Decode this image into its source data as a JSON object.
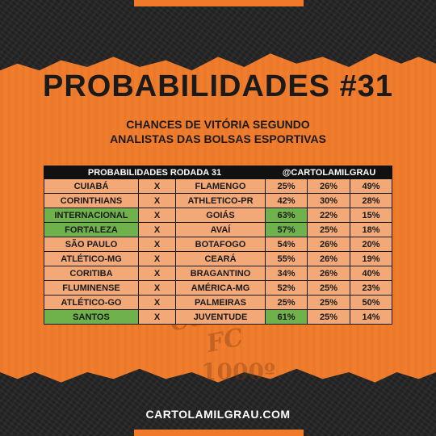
{
  "title": "PROBABILIDADES #31",
  "subtitle_line1": "CHANCES DE VITÓRIA SEGUNDO",
  "subtitle_line2": "ANALISTAS DAS BOLSAS ESPORTIVAS",
  "table": {
    "header_left": "PROBABILIDADES RODADA 31",
    "header_right": "@CARTOLAMILGRAU",
    "rows": [
      {
        "home": "CUIABÁ",
        "x": "X",
        "away": "FLAMENGO",
        "p1": "25%",
        "p2": "26%",
        "p3": "49%",
        "home_fav": false,
        "p1_fav": false
      },
      {
        "home": "CORINTHIANS",
        "x": "X",
        "away": "ATHLETICO-PR",
        "p1": "42%",
        "p2": "30%",
        "p3": "28%",
        "home_fav": false,
        "p1_fav": false
      },
      {
        "home": "INTERNACIONAL",
        "x": "X",
        "away": "GOIÁS",
        "p1": "63%",
        "p2": "22%",
        "p3": "15%",
        "home_fav": true,
        "p1_fav": true
      },
      {
        "home": "FORTALEZA",
        "x": "X",
        "away": "AVAÍ",
        "p1": "57%",
        "p2": "25%",
        "p3": "18%",
        "home_fav": true,
        "p1_fav": true
      },
      {
        "home": "SÃO PAULO",
        "x": "X",
        "away": "BOTAFOGO",
        "p1": "54%",
        "p2": "26%",
        "p3": "20%",
        "home_fav": false,
        "p1_fav": false
      },
      {
        "home": "ATLÉTICO-MG",
        "x": "X",
        "away": "CEARÁ",
        "p1": "55%",
        "p2": "26%",
        "p3": "19%",
        "home_fav": false,
        "p1_fav": false
      },
      {
        "home": "CORITIBA",
        "x": "X",
        "away": "BRAGANTINO",
        "p1": "34%",
        "p2": "26%",
        "p3": "40%",
        "home_fav": false,
        "p1_fav": false
      },
      {
        "home": "FLUMINENSE",
        "x": "X",
        "away": "AMÉRICA-MG",
        "p1": "52%",
        "p2": "25%",
        "p3": "23%",
        "home_fav": false,
        "p1_fav": false
      },
      {
        "home": "ATLÉTICO-GO",
        "x": "X",
        "away": "PALMEIRAS",
        "p1": "25%",
        "p2": "25%",
        "p3": "50%",
        "home_fav": false,
        "p1_fav": false
      },
      {
        "home": "SANTOS",
        "x": "X",
        "away": "JUVENTUDE",
        "p1": "61%",
        "p2": "25%",
        "p3": "14%",
        "home_fav": true,
        "p1_fav": true
      }
    ]
  },
  "watermark_word": "Cartola FC",
  "watermark_num": "1000º",
  "footer": "CARTOLAMILGRAU.COM",
  "colors": {
    "accent": "#f07a2a",
    "cell": "#f3a877",
    "highlight": "#6fb14b",
    "dark": "#1a1a1a"
  }
}
